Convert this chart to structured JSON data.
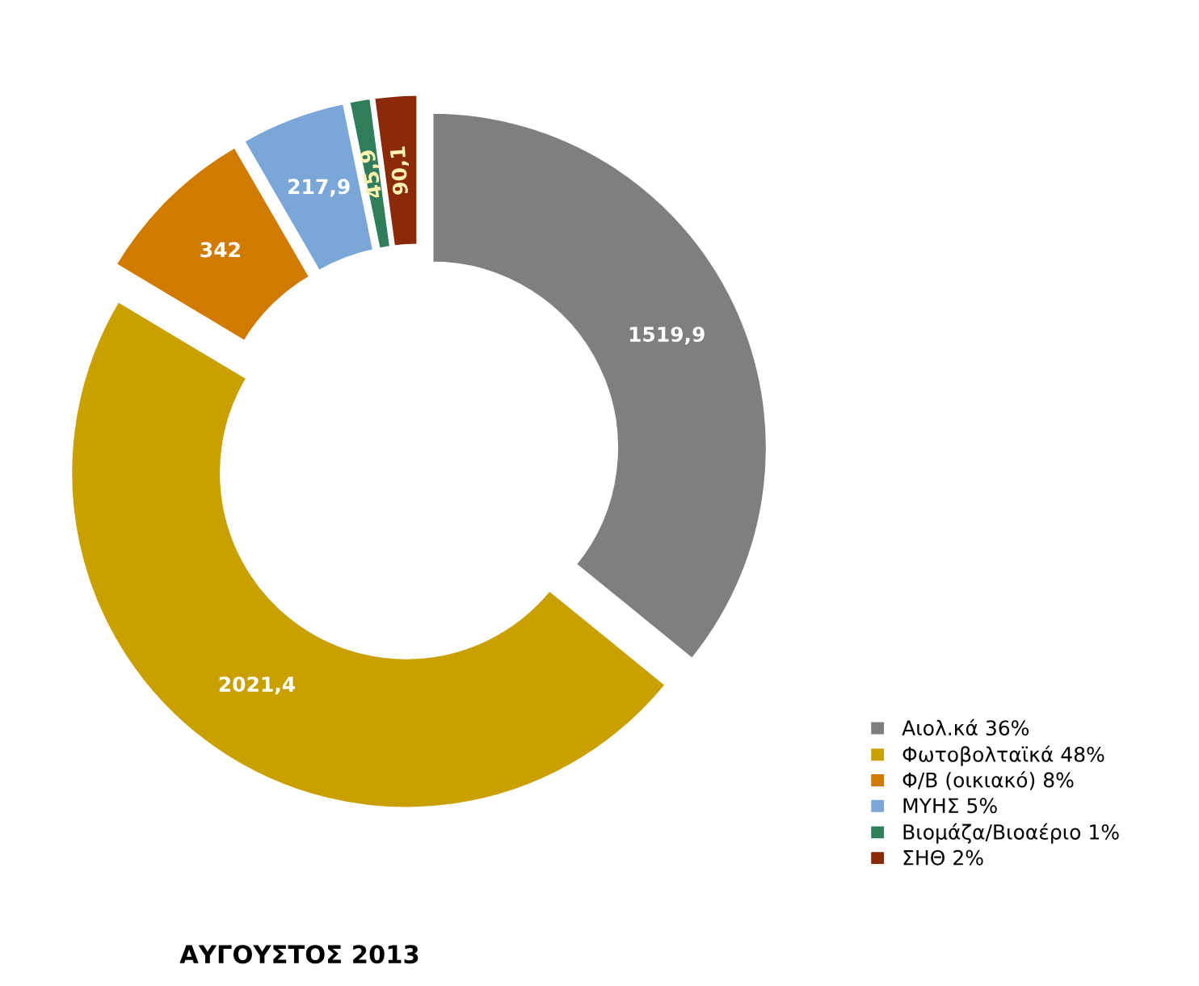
{
  "chart_data": {
    "type": "donut",
    "title": "ΑΥΓΟΥΣΤΟΣ 2013",
    "categories": [
      "Αιολ.κά 36%",
      "Φωτοβολταϊκά 48%",
      "Φ/Β (οικιακό) 8%",
      "ΜΥΗΣ 5%",
      "Βιομάζα/Βιοαέριο 1%",
      "ΣΗΘ 2%"
    ],
    "values": [
      1519.9,
      2021.4,
      342,
      217.9,
      45.9,
      90.1
    ],
    "value_labels": [
      "1519,9",
      "2021,4",
      "342",
      "217,9",
      "45,9",
      "90,1"
    ],
    "colors": [
      "#7f7f7f",
      "#c9a000",
      "#d07a00",
      "#7ba6d8",
      "#2f7d5a",
      "#8a2a0a"
    ],
    "legend": "bottom right"
  }
}
